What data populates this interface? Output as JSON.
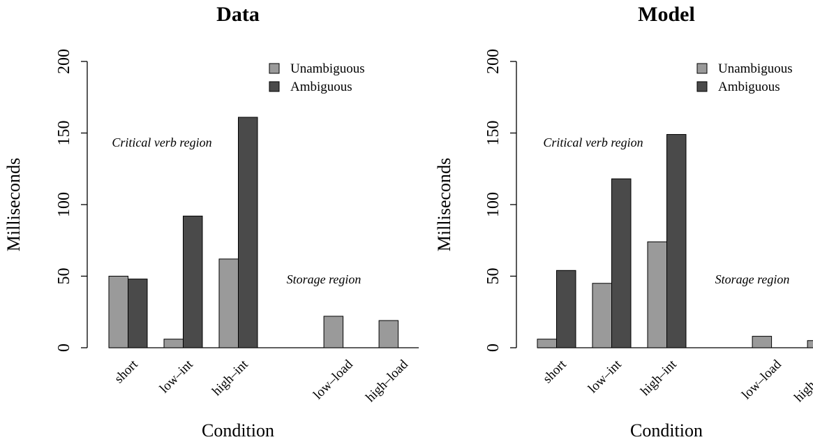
{
  "chart_data": [
    {
      "type": "bar",
      "title": "Data",
      "xlabel": "Condition",
      "ylabel": "Milliseconds",
      "ylim": [
        0,
        200
      ],
      "yticks": [
        0,
        50,
        100,
        150,
        200
      ],
      "categories": [
        "short",
        "low–int",
        "high–int",
        "low–load",
        "high–load"
      ],
      "series": [
        {
          "name": "Unambiguous",
          "color": "#9a9a9a",
          "values": [
            50,
            6,
            62,
            22,
            19
          ]
        },
        {
          "name": "Ambiguous",
          "color": "#4a4a4a",
          "values": [
            48,
            92,
            161,
            0,
            0
          ]
        }
      ],
      "annotations": [
        "Critical verb region",
        "Storage region"
      ],
      "legend": "top-right",
      "grid": false
    },
    {
      "type": "bar",
      "title": "Model",
      "xlabel": "Condition",
      "ylabel": "Milliseconds",
      "ylim": [
        0,
        200
      ],
      "yticks": [
        0,
        50,
        100,
        150,
        200
      ],
      "categories": [
        "short",
        "low–int",
        "high–int",
        "low–load",
        "high–load"
      ],
      "series": [
        {
          "name": "Unambiguous",
          "color": "#9a9a9a",
          "values": [
            6,
            45,
            74,
            8,
            5
          ]
        },
        {
          "name": "Ambiguous",
          "color": "#4a4a4a",
          "values": [
            54,
            118,
            149,
            0,
            0
          ]
        }
      ],
      "annotations": [
        "Critical verb region",
        "Storage region"
      ],
      "legend": "top-right",
      "grid": false
    }
  ]
}
